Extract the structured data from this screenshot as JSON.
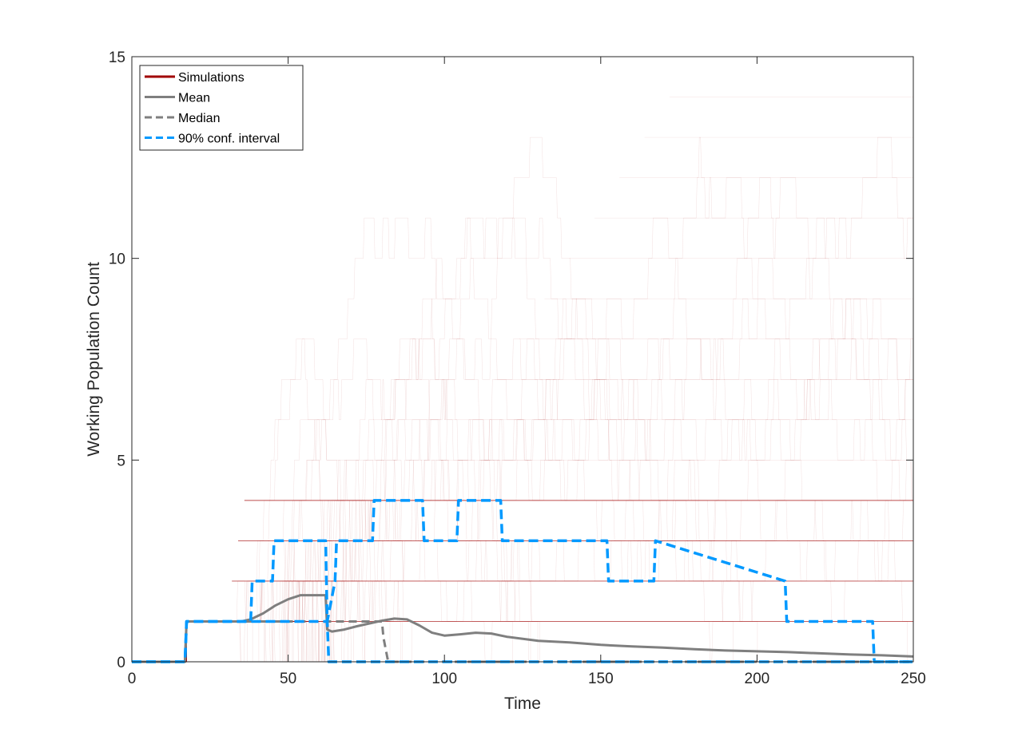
{
  "chart_data": {
    "type": "line",
    "title": "",
    "xlabel": "Time",
    "ylabel": "Working Population Count",
    "xlim": [
      0,
      250
    ],
    "ylim": [
      0,
      15
    ],
    "x_ticks": [
      0,
      50,
      100,
      150,
      200,
      250
    ],
    "y_ticks": [
      0,
      5,
      10,
      15
    ],
    "x_tick_labels": [
      "0",
      "50",
      "100",
      "150",
      "200",
      "250"
    ],
    "y_tick_labels": [
      "0",
      "5",
      "10",
      "15"
    ],
    "grid": false,
    "legend_position": "top-left",
    "colors": {
      "simulations": "#a00000",
      "mean": "#7f7f7f",
      "median": "#7f7f7f",
      "conf_interval": "#0099ff"
    },
    "legend": [
      {
        "label": "Simulations",
        "color": "#a00000",
        "dash": "solid"
      },
      {
        "label": "Mean",
        "color": "#7f7f7f",
        "dash": "solid"
      },
      {
        "label": "Median",
        "color": "#7f7f7f",
        "dash": "dashed"
      },
      {
        "label": "90% conf. interval",
        "color": "#0099ff",
        "dash": "dashed"
      }
    ],
    "series": [
      {
        "name": "Mean",
        "x": [
          0,
          17,
          17.5,
          35,
          38,
          42,
          46,
          50,
          54,
          58,
          62,
          62.5,
          64,
          68,
          72,
          76,
          80,
          84,
          88,
          92,
          96,
          100,
          105,
          110,
          115,
          120,
          130,
          140,
          150,
          160,
          170,
          180,
          190,
          200,
          210,
          220,
          230,
          240,
          250
        ],
        "y": [
          0,
          0,
          1.0,
          1.0,
          1.05,
          1.2,
          1.4,
          1.55,
          1.65,
          1.65,
          1.65,
          0.8,
          0.75,
          0.8,
          0.88,
          0.95,
          1.02,
          1.07,
          1.05,
          0.9,
          0.72,
          0.65,
          0.68,
          0.72,
          0.7,
          0.62,
          0.52,
          0.48,
          0.42,
          0.38,
          0.35,
          0.31,
          0.28,
          0.26,
          0.24,
          0.21,
          0.18,
          0.16,
          0.13
        ]
      },
      {
        "name": "Median",
        "x": [
          0,
          17,
          17.5,
          62.5,
          63,
          80,
          80.5,
          81.5,
          82,
          250
        ],
        "y": [
          0,
          0,
          1,
          1,
          1,
          1,
          0.6,
          0.2,
          0,
          0
        ]
      },
      {
        "name": "90% conf. interval (upper)",
        "x": [
          0,
          17,
          17.5,
          38,
          38.5,
          45,
          45.5,
          62,
          62.5,
          65,
          65.5,
          77,
          77.5,
          93,
          93.5,
          104,
          104.5,
          118,
          118.5,
          152,
          152.5,
          167,
          167.5,
          209,
          209.5,
          237,
          237.5,
          250
        ],
        "y": [
          0,
          0,
          1,
          1,
          2,
          2,
          3,
          3,
          1,
          2,
          3,
          3,
          4,
          4,
          3,
          3,
          4,
          4,
          3,
          3,
          2,
          2,
          3,
          2,
          1,
          1,
          0,
          0
        ]
      },
      {
        "name": "90% conf. interval (lower)",
        "x": [
          0,
          17,
          17.5,
          62.5,
          63,
          250
        ],
        "y": [
          0,
          0,
          1,
          1,
          0,
          0
        ]
      }
    ],
    "simulations_note_levels": [
      1,
      2,
      3,
      4,
      5,
      6,
      7,
      8,
      9,
      10,
      11,
      12,
      13,
      14,
      15
    ]
  }
}
